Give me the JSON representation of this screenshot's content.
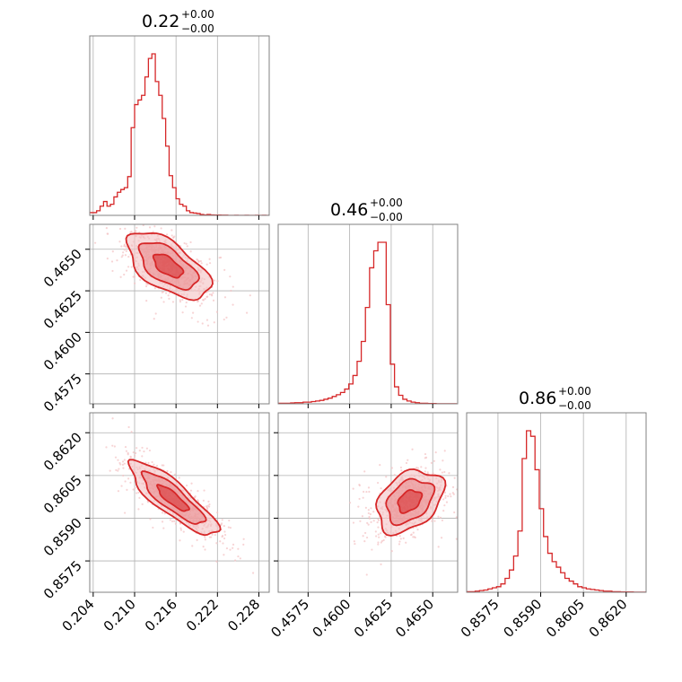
{
  "colors": {
    "accent": "#d62728",
    "fill_light": "#f4c2c3",
    "fill_mid": "#ea8c8e",
    "grid": "#b0b0b0"
  },
  "chart_data": [
    {
      "type": "histogram",
      "panel": "diag-0",
      "title": {
        "base": "0.22",
        "plus": "+0.00",
        "minus": "−0.00"
      },
      "x_ticks": [
        "0.204",
        "0.210",
        "0.216",
        "0.222",
        "0.228"
      ],
      "xlim": [
        0.2035,
        0.2295
      ],
      "bin_width": 0.0005,
      "counts": [
        0.3,
        0.3,
        0.5,
        1,
        1.5,
        1,
        1.2,
        2,
        2.5,
        2.8,
        3,
        4.2,
        9.5,
        12,
        12.5,
        13,
        15,
        17,
        17.5,
        14.5,
        13,
        10.5,
        7.5,
        4.3,
        3,
        1.8,
        1.2,
        1,
        0.5,
        0.3,
        0.25,
        0.2,
        0.1,
        0.05,
        0.1,
        0.05,
        0.03,
        0.03,
        0.02,
        0.02,
        0,
        0,
        0.01,
        0,
        0,
        0.01,
        0,
        0,
        0.01,
        0,
        0.01,
        0
      ]
    },
    {
      "type": "histogram",
      "panel": "diag-1",
      "title": {
        "base": "0.46",
        "plus": "+0.00",
        "minus": "−0.00"
      },
      "x_ticks": [
        "0.4575",
        "0.4600",
        "0.4625",
        "0.4650"
      ],
      "xlim": [
        0.4557,
        0.4665
      ],
      "bin_width": 0.00025,
      "counts": [
        0.1,
        0.1,
        0.1,
        0.15,
        0.2,
        0.2,
        0.3,
        0.3,
        0.4,
        0.5,
        0.6,
        0.8,
        1,
        1.3,
        1.6,
        2,
        2.6,
        3.5,
        5,
        7.5,
        11,
        17,
        24,
        27,
        28.5,
        28.5,
        17.5,
        7,
        3,
        1.5,
        0.8,
        0.5,
        0.3,
        0.2,
        0.1,
        0.1,
        0.05,
        0.05,
        0.02,
        0.02,
        0.01,
        0.01,
        0.01
      ]
    },
    {
      "type": "histogram",
      "panel": "diag-2",
      "title": {
        "base": "0.86",
        "plus": "+0.00",
        "minus": "−0.00"
      },
      "x_ticks": [
        "0.8575",
        "0.8590",
        "0.8605",
        "0.8620"
      ],
      "xlim": [
        0.8564,
        0.8627
      ],
      "bin_width": 0.00015,
      "counts": [
        0.1,
        0.1,
        0.2,
        0.3,
        0.4,
        0.6,
        0.8,
        1,
        1.5,
        2.5,
        4,
        6.5,
        11,
        24,
        29,
        28,
        22,
        15,
        10,
        7,
        5.5,
        4.5,
        3.5,
        2.5,
        2,
        1.5,
        1,
        0.8,
        0.6,
        0.5,
        0.4,
        0.3,
        0.2,
        0.2,
        0.1,
        0.1,
        0.05,
        0.05,
        0.05,
        0.02,
        0.02,
        0.01
      ]
    },
    {
      "type": "scatter+contour",
      "panel": "pair-1-0",
      "x_ticks": [
        "0.204",
        "0.210",
        "0.216",
        "0.222",
        "0.228"
      ],
      "y_ticks": [
        "0.4575",
        "0.4600",
        "0.4625",
        "0.4650"
      ],
      "xlim": [
        0.2035,
        0.2295
      ],
      "ylim": [
        0.4557,
        0.4665
      ],
      "center": [
        0.2148,
        0.464
      ],
      "spread": [
        0.003,
        0.001
      ],
      "correlation": -0.6
    },
    {
      "type": "scatter+contour",
      "panel": "pair-2-0",
      "x_ticks": [
        "0.204",
        "0.210",
        "0.216",
        "0.222",
        "0.228"
      ],
      "y_ticks": [
        "0.8575",
        "0.8590",
        "0.8605",
        "0.8620"
      ],
      "xlim": [
        0.2035,
        0.2295
      ],
      "ylim": [
        0.8564,
        0.8627
      ],
      "center": [
        0.2155,
        0.8597
      ],
      "spread": [
        0.0032,
        0.00065
      ],
      "correlation": -0.85
    },
    {
      "type": "scatter+contour",
      "panel": "pair-2-1",
      "x_ticks": [
        "0.4575",
        "0.4600",
        "0.4625",
        "0.4650"
      ],
      "y_ticks": [
        "0.8575",
        "0.8590",
        "0.8605",
        "0.8620"
      ],
      "xlim": [
        0.4557,
        0.4665
      ],
      "ylim": [
        0.8564,
        0.8627
      ],
      "center": [
        0.4636,
        0.8596
      ],
      "spread": [
        0.001,
        0.00055
      ],
      "correlation": 0.35
    }
  ]
}
